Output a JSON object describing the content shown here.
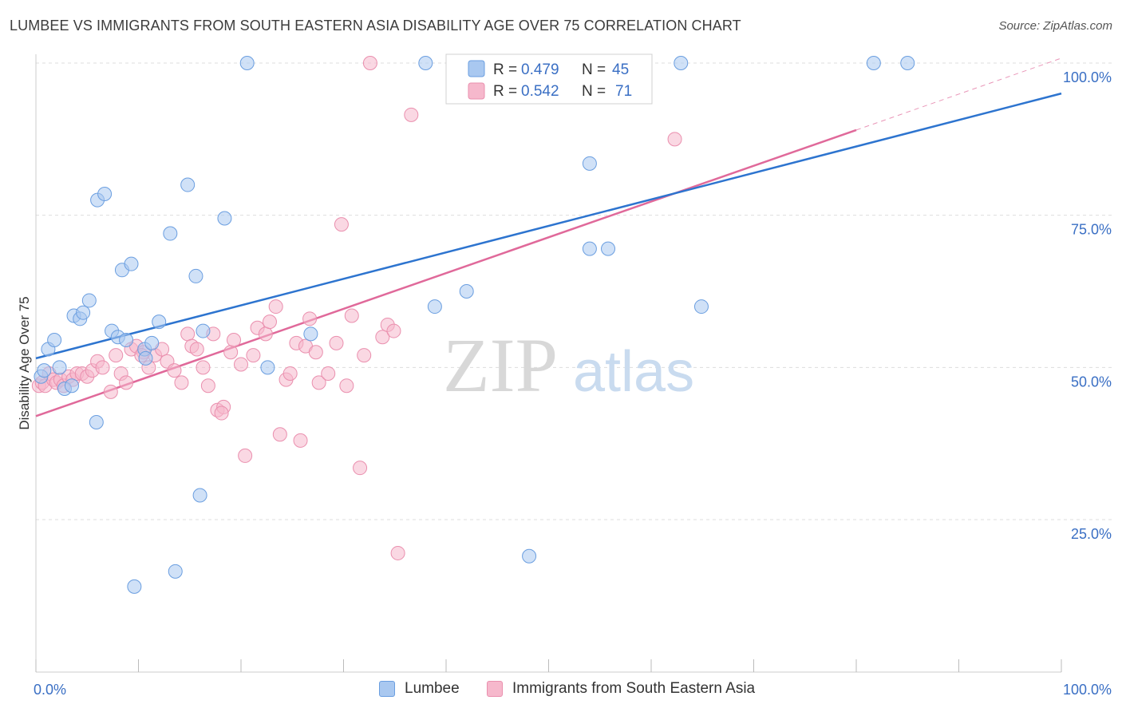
{
  "header": {
    "title": "LUMBEE VS IMMIGRANTS FROM SOUTH EASTERN ASIA DISABILITY AGE OVER 75 CORRELATION CHART",
    "source": "Source: ZipAtlas.com"
  },
  "watermark": {
    "zip": "ZIP",
    "atlas": "atlas"
  },
  "legend_box": {
    "rows": [
      {
        "r_label": "R =",
        "r_value": "0.479",
        "n_label": "N =",
        "n_value": "45"
      },
      {
        "r_label": "R =",
        "r_value": "0.542",
        "n_label": "N =",
        "n_value": "71"
      }
    ]
  },
  "bottom_legend": {
    "items": [
      "Lumbee",
      "Immigrants from South Eastern Asia"
    ]
  },
  "colors": {
    "lumbee_fill": "#a9c8f0",
    "lumbee_stroke": "#6a9ee0",
    "lumbee_line": "#2d74cf",
    "asia_fill": "#f6b8cc",
    "asia_stroke": "#ea8fae",
    "asia_line": "#e0699a",
    "tick": "#3a6fc4",
    "grid": "#dddddd"
  },
  "chart_data": {
    "type": "scatter",
    "title": "LUMBEE VS IMMIGRANTS FROM SOUTH EASTERN ASIA DISABILITY AGE OVER 75 CORRELATION CHART",
    "xlabel": "",
    "ylabel": "Disability Age Over 75",
    "xlim": [
      0,
      100
    ],
    "ylim": [
      4,
      103
    ],
    "x_tick_labels": [
      "0.0%",
      "100.0%"
    ],
    "y_ticks": [
      25,
      50,
      75,
      100
    ],
    "y_tick_labels": [
      "25.0%",
      "50.0%",
      "75.0%",
      "100.0%"
    ],
    "grid": true,
    "legend_placement": "top-center and bottom",
    "series": [
      {
        "name": "Lumbee",
        "R": 0.479,
        "N": 45,
        "trend": {
          "x": [
            0,
            100
          ],
          "y": [
            51.5,
            95.0
          ]
        },
        "points": [
          [
            0.5,
            48.5
          ],
          [
            0.8,
            49.5
          ],
          [
            1.2,
            53.0
          ],
          [
            1.8,
            54.5
          ],
          [
            2.3,
            50.0
          ],
          [
            2.8,
            46.5
          ],
          [
            3.5,
            47.0
          ],
          [
            3.7,
            58.5
          ],
          [
            4.3,
            58.0
          ],
          [
            4.6,
            59.0
          ],
          [
            5.2,
            61.0
          ],
          [
            5.9,
            41.0
          ],
          [
            6.0,
            77.5
          ],
          [
            6.7,
            78.5
          ],
          [
            7.4,
            56.0
          ],
          [
            8.0,
            55.0
          ],
          [
            8.4,
            66.0
          ],
          [
            8.8,
            54.5
          ],
          [
            9.3,
            67.0
          ],
          [
            9.6,
            14.0
          ],
          [
            10.6,
            53.0
          ],
          [
            10.7,
            51.5
          ],
          [
            11.3,
            54.0
          ],
          [
            12.0,
            57.5
          ],
          [
            13.1,
            72.0
          ],
          [
            13.6,
            16.5
          ],
          [
            14.8,
            80.0
          ],
          [
            15.6,
            65.0
          ],
          [
            16.0,
            29.0
          ],
          [
            16.3,
            56.0
          ],
          [
            18.4,
            74.5
          ],
          [
            20.6,
            100.0
          ],
          [
            22.6,
            50.0
          ],
          [
            26.8,
            55.5
          ],
          [
            38.0,
            100.0
          ],
          [
            38.9,
            60.0
          ],
          [
            42.0,
            62.5
          ],
          [
            48.1,
            19.0
          ],
          [
            54.0,
            83.5
          ],
          [
            54.0,
            69.5
          ],
          [
            55.8,
            69.5
          ],
          [
            62.9,
            100.0
          ],
          [
            64.9,
            60.0
          ],
          [
            81.7,
            100.0
          ],
          [
            85.0,
            100.0
          ]
        ]
      },
      {
        "name": "Immigrants from South Eastern Asia",
        "R": 0.542,
        "N": 71,
        "trend": {
          "x": [
            0,
            80
          ],
          "y": [
            42.0,
            89.0
          ]
        },
        "trend_extension": {
          "x": [
            80,
            100
          ],
          "y": [
            89.0,
            100.8
          ]
        },
        "points": [
          [
            0.3,
            47.0
          ],
          [
            0.6,
            47.5
          ],
          [
            0.9,
            47.0
          ],
          [
            1.3,
            49.0
          ],
          [
            1.7,
            48.0
          ],
          [
            2.0,
            47.5
          ],
          [
            2.4,
            48.0
          ],
          [
            2.7,
            47.0
          ],
          [
            3.2,
            48.5
          ],
          [
            3.6,
            48.0
          ],
          [
            4.0,
            49.0
          ],
          [
            4.5,
            49.0
          ],
          [
            5.0,
            48.5
          ],
          [
            5.5,
            49.5
          ],
          [
            6.0,
            51.0
          ],
          [
            6.5,
            50.0
          ],
          [
            7.3,
            46.0
          ],
          [
            7.8,
            52.0
          ],
          [
            8.3,
            49.0
          ],
          [
            8.8,
            47.5
          ],
          [
            9.3,
            53.0
          ],
          [
            9.8,
            53.5
          ],
          [
            10.5,
            52.5
          ],
          [
            11.0,
            50.0
          ],
          [
            11.6,
            52.0
          ],
          [
            12.3,
            53.0
          ],
          [
            12.8,
            51.0
          ],
          [
            13.5,
            49.5
          ],
          [
            14.2,
            47.5
          ],
          [
            14.8,
            55.5
          ],
          [
            15.2,
            53.5
          ],
          [
            15.7,
            53.0
          ],
          [
            16.3,
            50.0
          ],
          [
            16.8,
            47.0
          ],
          [
            17.3,
            55.5
          ],
          [
            17.7,
            43.0
          ],
          [
            18.3,
            43.5
          ],
          [
            19.0,
            52.5
          ],
          [
            19.3,
            54.5
          ],
          [
            20.0,
            50.5
          ],
          [
            20.4,
            35.5
          ],
          [
            21.2,
            52.0
          ],
          [
            21.6,
            56.5
          ],
          [
            22.4,
            55.5
          ],
          [
            22.8,
            57.5
          ],
          [
            23.4,
            60.0
          ],
          [
            23.8,
            39.0
          ],
          [
            24.4,
            48.0
          ],
          [
            24.8,
            49.0
          ],
          [
            25.4,
            54.0
          ],
          [
            25.8,
            38.0
          ],
          [
            26.3,
            53.5
          ],
          [
            26.7,
            58.0
          ],
          [
            27.3,
            52.5
          ],
          [
            27.6,
            47.5
          ],
          [
            28.5,
            49.0
          ],
          [
            29.3,
            54.0
          ],
          [
            29.8,
            73.5
          ],
          [
            30.3,
            47.0
          ],
          [
            30.8,
            58.5
          ],
          [
            31.6,
            33.5
          ],
          [
            32.0,
            52.0
          ],
          [
            32.6,
            100.0
          ],
          [
            33.8,
            55.0
          ],
          [
            34.3,
            57.0
          ],
          [
            34.9,
            56.0
          ],
          [
            35.3,
            19.5
          ],
          [
            36.6,
            91.5
          ],
          [
            62.3,
            87.5
          ],
          [
            18.1,
            42.5
          ],
          [
            10.3,
            52.0
          ]
        ]
      }
    ]
  }
}
